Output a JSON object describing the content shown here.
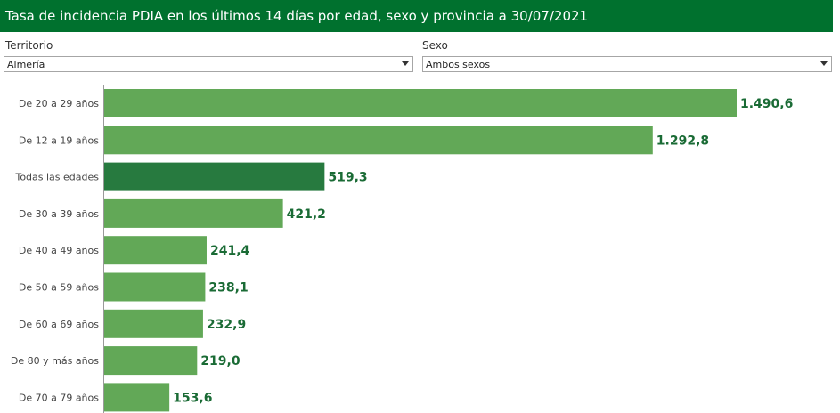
{
  "title": "Tasa de incidencia PDIA en los últimos 14 días por edad, sexo y provincia a 30/07/2021",
  "filters": {
    "territorio": {
      "label": "Territorio",
      "value": "Almería"
    },
    "sexo": {
      "label": "Sexo",
      "value": "Ambos sexos"
    }
  },
  "colors": {
    "header": "#00712e",
    "bar": "#62a857",
    "bar_highlight": "#277a3f",
    "value_label": "#1a6b35"
  },
  "icons": {
    "select_caret": "caret-down-icon"
  },
  "chart_data": {
    "type": "bar",
    "orientation": "horizontal",
    "categories": [
      "De 20 a 29 años",
      "De 12 a 19 años",
      "Todas las edades",
      "De 30 a 39 años",
      "De 40 a 49 años",
      "De 50 a 59 años",
      "De 60 a 69 años",
      "De 80 y más años",
      "De 70 a 79 años"
    ],
    "values": [
      1490.6,
      1292.8,
      519.3,
      421.2,
      241.4,
      238.1,
      232.9,
      219.0,
      153.6
    ],
    "value_labels": [
      "1.490,6",
      "1.292,8",
      "519,3",
      "421,2",
      "241,4",
      "238,1",
      "232,9",
      "219,0",
      "153,6"
    ],
    "highlight": "Todas las edades",
    "xlim": [
      0,
      1490.6
    ],
    "grid": false,
    "legend": "none"
  }
}
